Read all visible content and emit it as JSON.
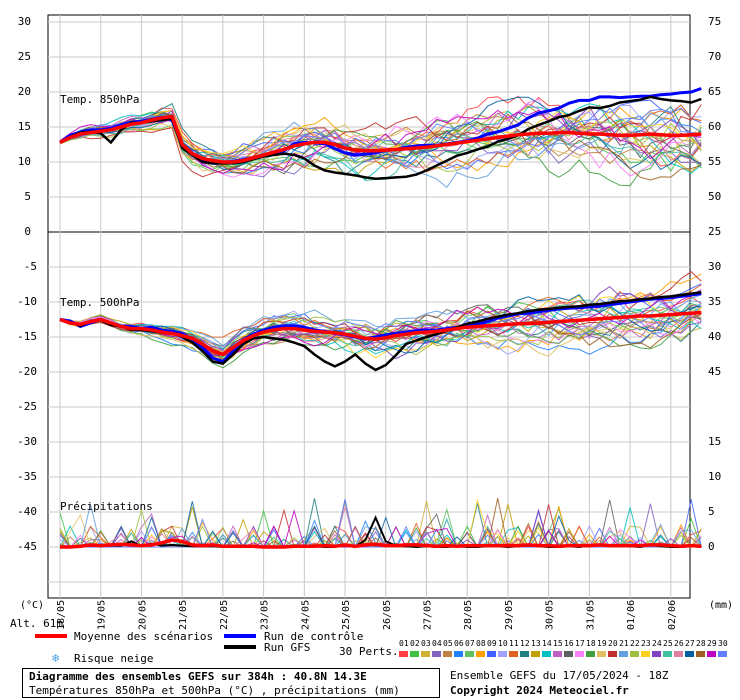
{
  "chart_data": {
    "type": "line",
    "x_dates": [
      "18/05",
      "19/05",
      "20/05",
      "21/05",
      "22/05",
      "23/05",
      "24/05",
      "25/05",
      "26/05",
      "27/05",
      "28/05",
      "29/05",
      "30/05",
      "31/05",
      "01/06",
      "02/06"
    ],
    "x_step_hours": 6,
    "n_steps": 64,
    "panels": [
      {
        "name": "Temp. 850hPa",
        "unit": "°C",
        "ylim": [
          0,
          30
        ],
        "y_ticks_left": [
          5,
          10,
          15,
          20,
          25,
          30
        ],
        "y_zero_label": "0",
        "y_ticks_right": [
          50,
          55,
          60,
          65,
          70,
          75
        ],
        "mean_series": [
          12.8,
          13.5,
          14.0,
          14.2,
          14.4,
          14.6,
          15.0,
          15.4,
          15.6,
          16.0,
          16.3,
          16.5,
          12.5,
          11.2,
          10.5,
          10.2,
          10.0,
          10.0,
          10.2,
          10.6,
          11.0,
          11.4,
          11.8,
          12.3,
          12.6,
          12.8,
          12.8,
          12.5,
          12.0,
          11.7,
          11.6,
          11.6,
          11.7,
          11.8,
          11.9,
          12.0,
          12.1,
          12.3,
          12.5,
          12.7,
          12.9,
          13.1,
          13.3,
          13.5,
          13.7,
          13.9,
          14.0,
          14.1,
          14.1,
          14.2,
          14.2,
          14.1,
          14.0,
          14.0,
          13.9,
          13.8,
          13.8,
          13.9,
          14.0,
          13.9,
          13.8,
          13.8,
          13.9,
          14.0
        ],
        "control_series": [
          12.8,
          13.8,
          14.3,
          14.6,
          14.6,
          14.8,
          15.3,
          15.7,
          15.8,
          16.1,
          16.4,
          16.0,
          12.4,
          11.3,
          10.2,
          9.8,
          9.9,
          10.1,
          10.3,
          10.6,
          11.0,
          11.3,
          11.6,
          12.6,
          12.8,
          12.7,
          12.6,
          11.9,
          11.3,
          11.0,
          11.1,
          11.3,
          11.7,
          11.8,
          12.1,
          12.3,
          12.4,
          12.4,
          12.6,
          12.8,
          13.0,
          13.4,
          14.0,
          14.3,
          14.8,
          15.3,
          16.3,
          17.0,
          17.3,
          17.7,
          18.4,
          18.8,
          18.8,
          19.3,
          19.3,
          19.2,
          19.3,
          19.4,
          19.4,
          19.6,
          19.7,
          19.9,
          20.0,
          20.5
        ],
        "gfs_series": [
          12.8,
          13.6,
          14.2,
          14.3,
          14.1,
          12.8,
          14.6,
          15.6,
          15.6,
          15.8,
          16.0,
          16.2,
          12.0,
          11.0,
          10.0,
          9.8,
          9.8,
          9.8,
          10.0,
          10.4,
          10.8,
          11.0,
          11.2,
          11.0,
          10.5,
          9.5,
          8.8,
          8.5,
          8.3,
          8.1,
          7.8,
          7.6,
          7.7,
          7.8,
          7.9,
          8.2,
          8.8,
          9.5,
          10.2,
          10.9,
          11.3,
          11.8,
          12.2,
          12.9,
          13.3,
          13.8,
          14.7,
          15.3,
          15.8,
          16.4,
          16.7,
          17.3,
          17.8,
          17.7,
          18.0,
          18.5,
          18.7,
          18.9,
          19.3,
          19.0,
          18.8,
          18.7,
          18.5,
          19.0
        ],
        "ensemble_spread": [
          0.3,
          0.6,
          0.8,
          0.9,
          1.0,
          1.1,
          1.2,
          1.3,
          1.4,
          1.5,
          1.6,
          1.7,
          1.9,
          2.0,
          2.0,
          2.1,
          2.2,
          2.4,
          2.6,
          2.8,
          3.0,
          3.2,
          3.3,
          3.4,
          3.5,
          3.6,
          3.6,
          3.6,
          3.6,
          3.6,
          3.6,
          3.6,
          3.6,
          3.6,
          3.7,
          3.8,
          3.9,
          4.0,
          4.0,
          4.0,
          4.1,
          4.2,
          4.3,
          4.3,
          4.4,
          4.5,
          4.6,
          4.7,
          4.8,
          4.9,
          5.0,
          5.0,
          5.1,
          5.1,
          5.2,
          5.2,
          5.3,
          5.3,
          5.4,
          5.4,
          5.5,
          5.5,
          5.6,
          5.6
        ]
      },
      {
        "name": "Temp. 500hPa",
        "unit": "°C",
        "ylim": [
          -25,
          0
        ],
        "y_ticks_left": [
          -5,
          -10,
          -15,
          -20,
          -25
        ],
        "y_ticks_right": [
          25,
          30,
          35,
          40,
          45
        ],
        "mean_series": [
          -12.5,
          -13.0,
          -13.2,
          -12.8,
          -12.5,
          -13.0,
          -13.5,
          -13.8,
          -13.8,
          -14.0,
          -14.3,
          -14.5,
          -14.8,
          -15.2,
          -16.0,
          -17.0,
          -17.5,
          -16.5,
          -15.5,
          -14.8,
          -14.3,
          -14.0,
          -13.8,
          -13.8,
          -14.0,
          -14.2,
          -14.3,
          -14.4,
          -14.6,
          -14.9,
          -15.2,
          -15.3,
          -15.1,
          -14.8,
          -14.6,
          -14.4,
          -14.3,
          -14.2,
          -14.0,
          -13.8,
          -13.6,
          -13.5,
          -13.4,
          -13.3,
          -13.2,
          -13.1,
          -13.1,
          -13.0,
          -12.9,
          -12.8,
          -12.7,
          -12.6,
          -12.5,
          -12.4,
          -12.3,
          -12.2,
          -12.1,
          -12.0,
          -12.0,
          -11.9,
          -11.8,
          -11.7,
          -11.6,
          -11.5
        ],
        "control_series": [
          -12.5,
          -12.7,
          -13.5,
          -13.0,
          -12.5,
          -13.0,
          -13.5,
          -13.5,
          -13.8,
          -13.6,
          -14.0,
          -14.2,
          -14.5,
          -15.3,
          -16.5,
          -18.0,
          -18.5,
          -17.0,
          -15.4,
          -14.6,
          -14.0,
          -13.6,
          -13.4,
          -13.4,
          -13.6,
          -14.0,
          -14.2,
          -14.5,
          -14.7,
          -15.0,
          -15.3,
          -15.0,
          -14.7,
          -14.5,
          -14.3,
          -14.1,
          -14.0,
          -14.0,
          -13.8,
          -13.6,
          -13.4,
          -13.2,
          -12.8,
          -12.3,
          -12.0,
          -11.7,
          -11.6,
          -11.4,
          -11.2,
          -11.0,
          -10.9,
          -10.8,
          -10.7,
          -10.6,
          -10.4,
          -10.2,
          -10.0,
          -9.8,
          -9.6,
          -9.5,
          -9.4,
          -9.2,
          -9.0,
          -8.8
        ],
        "gfs_series": [
          -12.5,
          -12.9,
          -13.4,
          -12.7,
          -12.6,
          -13.3,
          -13.5,
          -14.0,
          -14.0,
          -14.2,
          -14.4,
          -14.5,
          -15.0,
          -15.8,
          -17.0,
          -18.5,
          -18.8,
          -17.5,
          -16.0,
          -15.2,
          -15.0,
          -15.2,
          -15.4,
          -15.8,
          -16.3,
          -17.5,
          -18.5,
          -19.2,
          -18.5,
          -17.5,
          -18.8,
          -19.7,
          -19.0,
          -17.6,
          -16.0,
          -15.5,
          -15.0,
          -14.6,
          -14.1,
          -13.6,
          -13.1,
          -12.8,
          -12.4,
          -12.1,
          -11.8,
          -11.6,
          -11.3,
          -11.1,
          -11.0,
          -10.8,
          -10.7,
          -10.6,
          -10.4,
          -10.3,
          -10.1,
          -9.9,
          -9.8,
          -9.6,
          -9.5,
          -9.3,
          -9.2,
          -9.0,
          -8.8,
          -8.6
        ],
        "ensemble_spread": [
          0.3,
          0.4,
          0.5,
          0.6,
          0.7,
          0.8,
          0.9,
          1.0,
          1.0,
          1.1,
          1.2,
          1.3,
          1.4,
          1.5,
          1.6,
          1.7,
          1.8,
          1.9,
          2.0,
          2.1,
          2.2,
          2.3,
          2.4,
          2.5,
          2.6,
          2.7,
          2.8,
          2.8,
          2.9,
          3.0,
          3.1,
          3.2,
          3.2,
          3.3,
          3.3,
          3.4,
          3.4,
          3.5,
          3.5,
          3.5,
          3.6,
          3.6,
          3.6,
          3.6,
          3.7,
          3.7,
          3.7,
          3.8,
          3.8,
          3.8,
          3.8,
          3.9,
          3.9,
          3.9,
          3.9,
          4.0,
          4.0,
          4.0,
          4.0,
          4.0,
          4.0,
          4.0,
          4.0,
          4.0
        ]
      },
      {
        "name": "Précipitations",
        "unit": "mm",
        "ylim": [
          -50,
          -35
        ],
        "y_ticks_left": [
          -30,
          -35,
          -40,
          -45
        ],
        "y_ticks_right": [
          15,
          10,
          5,
          0
        ],
        "baseline": -45,
        "mean_series": [
          0,
          0,
          0.1,
          0.3,
          0.2,
          0.3,
          0.4,
          0.3,
          0.2,
          0.3,
          0.6,
          1.0,
          0.8,
          0.3,
          0.2,
          0.3,
          0.1,
          0.1,
          0.1,
          0.1,
          0,
          0,
          0,
          0.1,
          0.1,
          0.1,
          0.2,
          0.1,
          0.3,
          0.1,
          0.3,
          0.4,
          0.2,
          0.2,
          0.3,
          0.3,
          0.2,
          0.1,
          0.2,
          0.1,
          0.2,
          0.2,
          0.2,
          0.2,
          0.2,
          0.2,
          0.3,
          0.2,
          0.2,
          0.1,
          0.2,
          0.2,
          0.2,
          0.3,
          0.2,
          0.2,
          0.2,
          0.2,
          0.3,
          0.3,
          0.2,
          0.1,
          0.2,
          0.1
        ],
        "gfs_series": [
          0,
          0,
          0.1,
          0.2,
          0.1,
          0.2,
          0.2,
          0.8,
          0.1,
          0.5,
          0.2,
          0.3,
          0.2,
          0.1,
          0.1,
          0.1,
          0,
          0.1,
          0,
          0,
          0,
          0,
          0,
          0,
          0,
          0.1,
          0,
          0,
          0.3,
          0,
          1.0,
          4.2,
          0.8,
          0.2,
          0.1,
          0,
          0.1,
          0,
          0,
          0.1,
          0,
          0,
          0.1,
          0.1,
          0,
          0.1,
          0.2,
          0.1,
          0,
          0,
          0.1,
          0,
          0.2,
          0.3,
          0.1,
          0.2,
          0.1,
          0,
          0.3,
          0.1,
          0,
          0,
          0.1,
          0
        ]
      }
    ],
    "x_axis_label_left": "(°C)",
    "x_axis_label_right": "(mm)",
    "altitude_label": "Alt. 61m",
    "n_members": 30,
    "colors": {
      "mean": "#ff0000",
      "control": "#0000ff",
      "gfs": "#000000",
      "grid": "#c8c8c8",
      "members": [
        "#ff4040",
        "#40c040",
        "#d0b030",
        "#8060c0",
        "#c08040",
        "#2080ff",
        "#60c060",
        "#ffa000",
        "#4060ff",
        "#a0a0ff",
        "#e06020",
        "#208080",
        "#c0a000",
        "#00c0c0",
        "#c060c0",
        "#606060",
        "#ff80ff",
        "#40a040",
        "#e0c060",
        "#c03030",
        "#60a0e0",
        "#a0c040",
        "#ffd020",
        "#8040c0",
        "#40c0a0",
        "#e080a0",
        "#0060a0",
        "#a06020",
        "#c000c0",
        "#6080ff"
      ]
    }
  },
  "legend": {
    "mean_label": "Moyenne des scénarios",
    "control_label": "Run de contrôle",
    "gfs_label": "Run GFS",
    "snow_label": "Risque neige",
    "perts_label": "30 Perts.",
    "member_codes": [
      "01",
      "02",
      "03",
      "04",
      "05",
      "06",
      "07",
      "08",
      "09",
      "10",
      "11",
      "12",
      "13",
      "14",
      "15",
      "16",
      "17",
      "18",
      "19",
      "20",
      "21",
      "22",
      "23",
      "24",
      "25",
      "26",
      "27",
      "28",
      "29",
      "30"
    ]
  },
  "footer": {
    "title": "Diagramme des ensembles GEFS sur 384h : 40.8N 14.3E",
    "subtitle": "Températures 850hPa et 500hPa (°C) , précipitations (mm)",
    "run_info": "Ensemble GEFS du 17/05/2024 - 18Z",
    "copyright": "Copyright 2024 Meteociel.fr"
  }
}
